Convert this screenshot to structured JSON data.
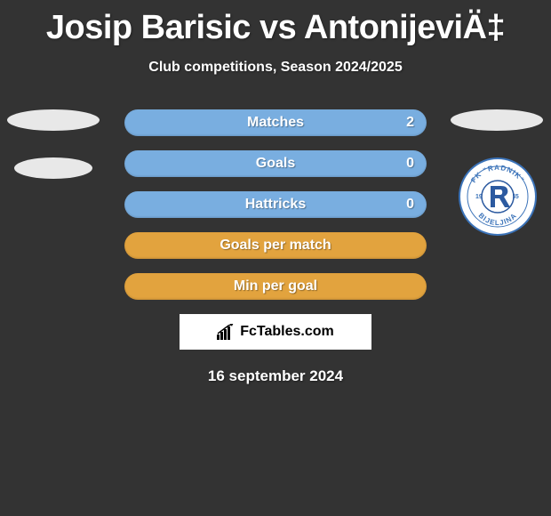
{
  "title": "Josip Barisic vs AntonijeviÄ‡",
  "subtitle": "Club competitions, Season 2024/2025",
  "date": "16 september 2024",
  "footer_brand": "FcTables.com",
  "stats": [
    {
      "label": "Matches",
      "value": "2",
      "bg": "#79aee0"
    },
    {
      "label": "Goals",
      "value": "0",
      "bg": "#79aee0"
    },
    {
      "label": "Hattricks",
      "value": "0",
      "bg": "#79aee0"
    },
    {
      "label": "Goals per match",
      "value": "",
      "bg": "#e2a33e"
    },
    {
      "label": "Min per goal",
      "value": "",
      "bg": "#e2a33e"
    }
  ],
  "club_logo": {
    "name": "FK Radnik Bijeljina",
    "top_text": "FK \"RADNIK\"",
    "bottom_text": "BIJELJINA",
    "year": "1945",
    "ring_color": "#3b73b9",
    "inner_bg": "#ffffff",
    "accent": "#2c5aa0"
  },
  "colors": {
    "page_bg": "#333333",
    "text": "#ffffff",
    "badge_ellipse": "#e8e8e8"
  }
}
